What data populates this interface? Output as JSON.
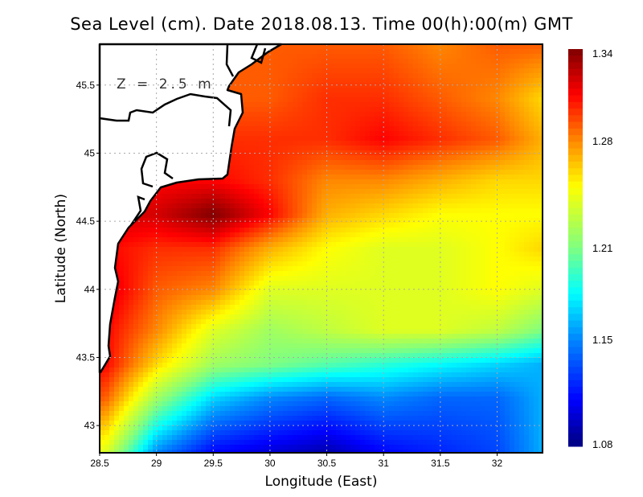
{
  "title": "Sea Level (cm). Date 2018.08.13. Time 00(h):00(m) GMT",
  "annotation": "Z = 2.5 m",
  "chart_data": {
    "type": "heatmap",
    "title": "Sea Level (cm). Date 2018.08.13. Time 00(h):00(m) GMT",
    "xlabel": "Longitude (East)",
    "ylabel": "Latitude (North)",
    "xlim": [
      28.5,
      32.4
    ],
    "ylim": [
      42.8,
      45.8
    ],
    "xticks": [
      "28.5",
      "29",
      "29.5",
      "30",
      "30.5",
      "31",
      "31.5",
      "32"
    ],
    "yticks": [
      "43",
      "43.5",
      "44",
      "44.5",
      "45",
      "45.5"
    ],
    "grid": true,
    "colorbar": {
      "range": [
        1.08,
        1.34
      ],
      "ticks": [
        "1.34",
        "1.28",
        "1.21",
        "1.15",
        "1.08"
      ],
      "placement": "right",
      "stops": [
        [
          1.08,
          "#00007f"
        ],
        [
          1.11,
          "#0000ff"
        ],
        [
          1.15,
          "#0088ff"
        ],
        [
          1.18,
          "#00ffff"
        ],
        [
          1.21,
          "#80ff80"
        ],
        [
          1.25,
          "#ffff00"
        ],
        [
          1.28,
          "#ff8800"
        ],
        [
          1.31,
          "#ff0000"
        ],
        [
          1.34,
          "#7f0000"
        ]
      ]
    },
    "lon": [
      28.55,
      29.0,
      29.5,
      30.0,
      30.5,
      31.0,
      31.5,
      32.0,
      32.4
    ],
    "lat": [
      45.8,
      45.4,
      45.1,
      44.8,
      44.55,
      44.3,
      44.0,
      43.7,
      43.45,
      43.2,
      42.8
    ],
    "values": [
      [
        null,
        null,
        null,
        1.29,
        1.29,
        1.29,
        1.28,
        1.29,
        1.29
      ],
      [
        null,
        null,
        null,
        1.29,
        1.3,
        1.3,
        1.29,
        1.28,
        1.26
      ],
      [
        null,
        null,
        null,
        1.3,
        1.3,
        1.31,
        1.3,
        1.29,
        1.27
      ],
      [
        null,
        null,
        1.31,
        1.3,
        1.28,
        1.28,
        1.27,
        1.26,
        1.26
      ],
      [
        null,
        1.32,
        1.34,
        1.31,
        1.27,
        1.26,
        1.25,
        1.25,
        1.25
      ],
      [
        1.31,
        1.3,
        1.3,
        1.27,
        1.25,
        1.24,
        1.24,
        1.25,
        1.26
      ],
      [
        1.32,
        1.29,
        1.28,
        1.24,
        1.24,
        1.24,
        1.24,
        1.25,
        1.24
      ],
      [
        1.31,
        1.28,
        1.24,
        1.22,
        1.23,
        1.24,
        1.24,
        1.23,
        1.21
      ],
      [
        1.31,
        1.26,
        1.22,
        1.21,
        1.2,
        1.19,
        1.18,
        1.17,
        1.16
      ],
      [
        1.29,
        1.22,
        1.17,
        1.15,
        1.14,
        1.15,
        1.14,
        1.14,
        1.16
      ],
      [
        1.24,
        1.15,
        1.11,
        1.1,
        1.09,
        1.11,
        1.12,
        1.13,
        1.16
      ]
    ],
    "land_color": "#ffffff",
    "coast_color": "#000000"
  }
}
